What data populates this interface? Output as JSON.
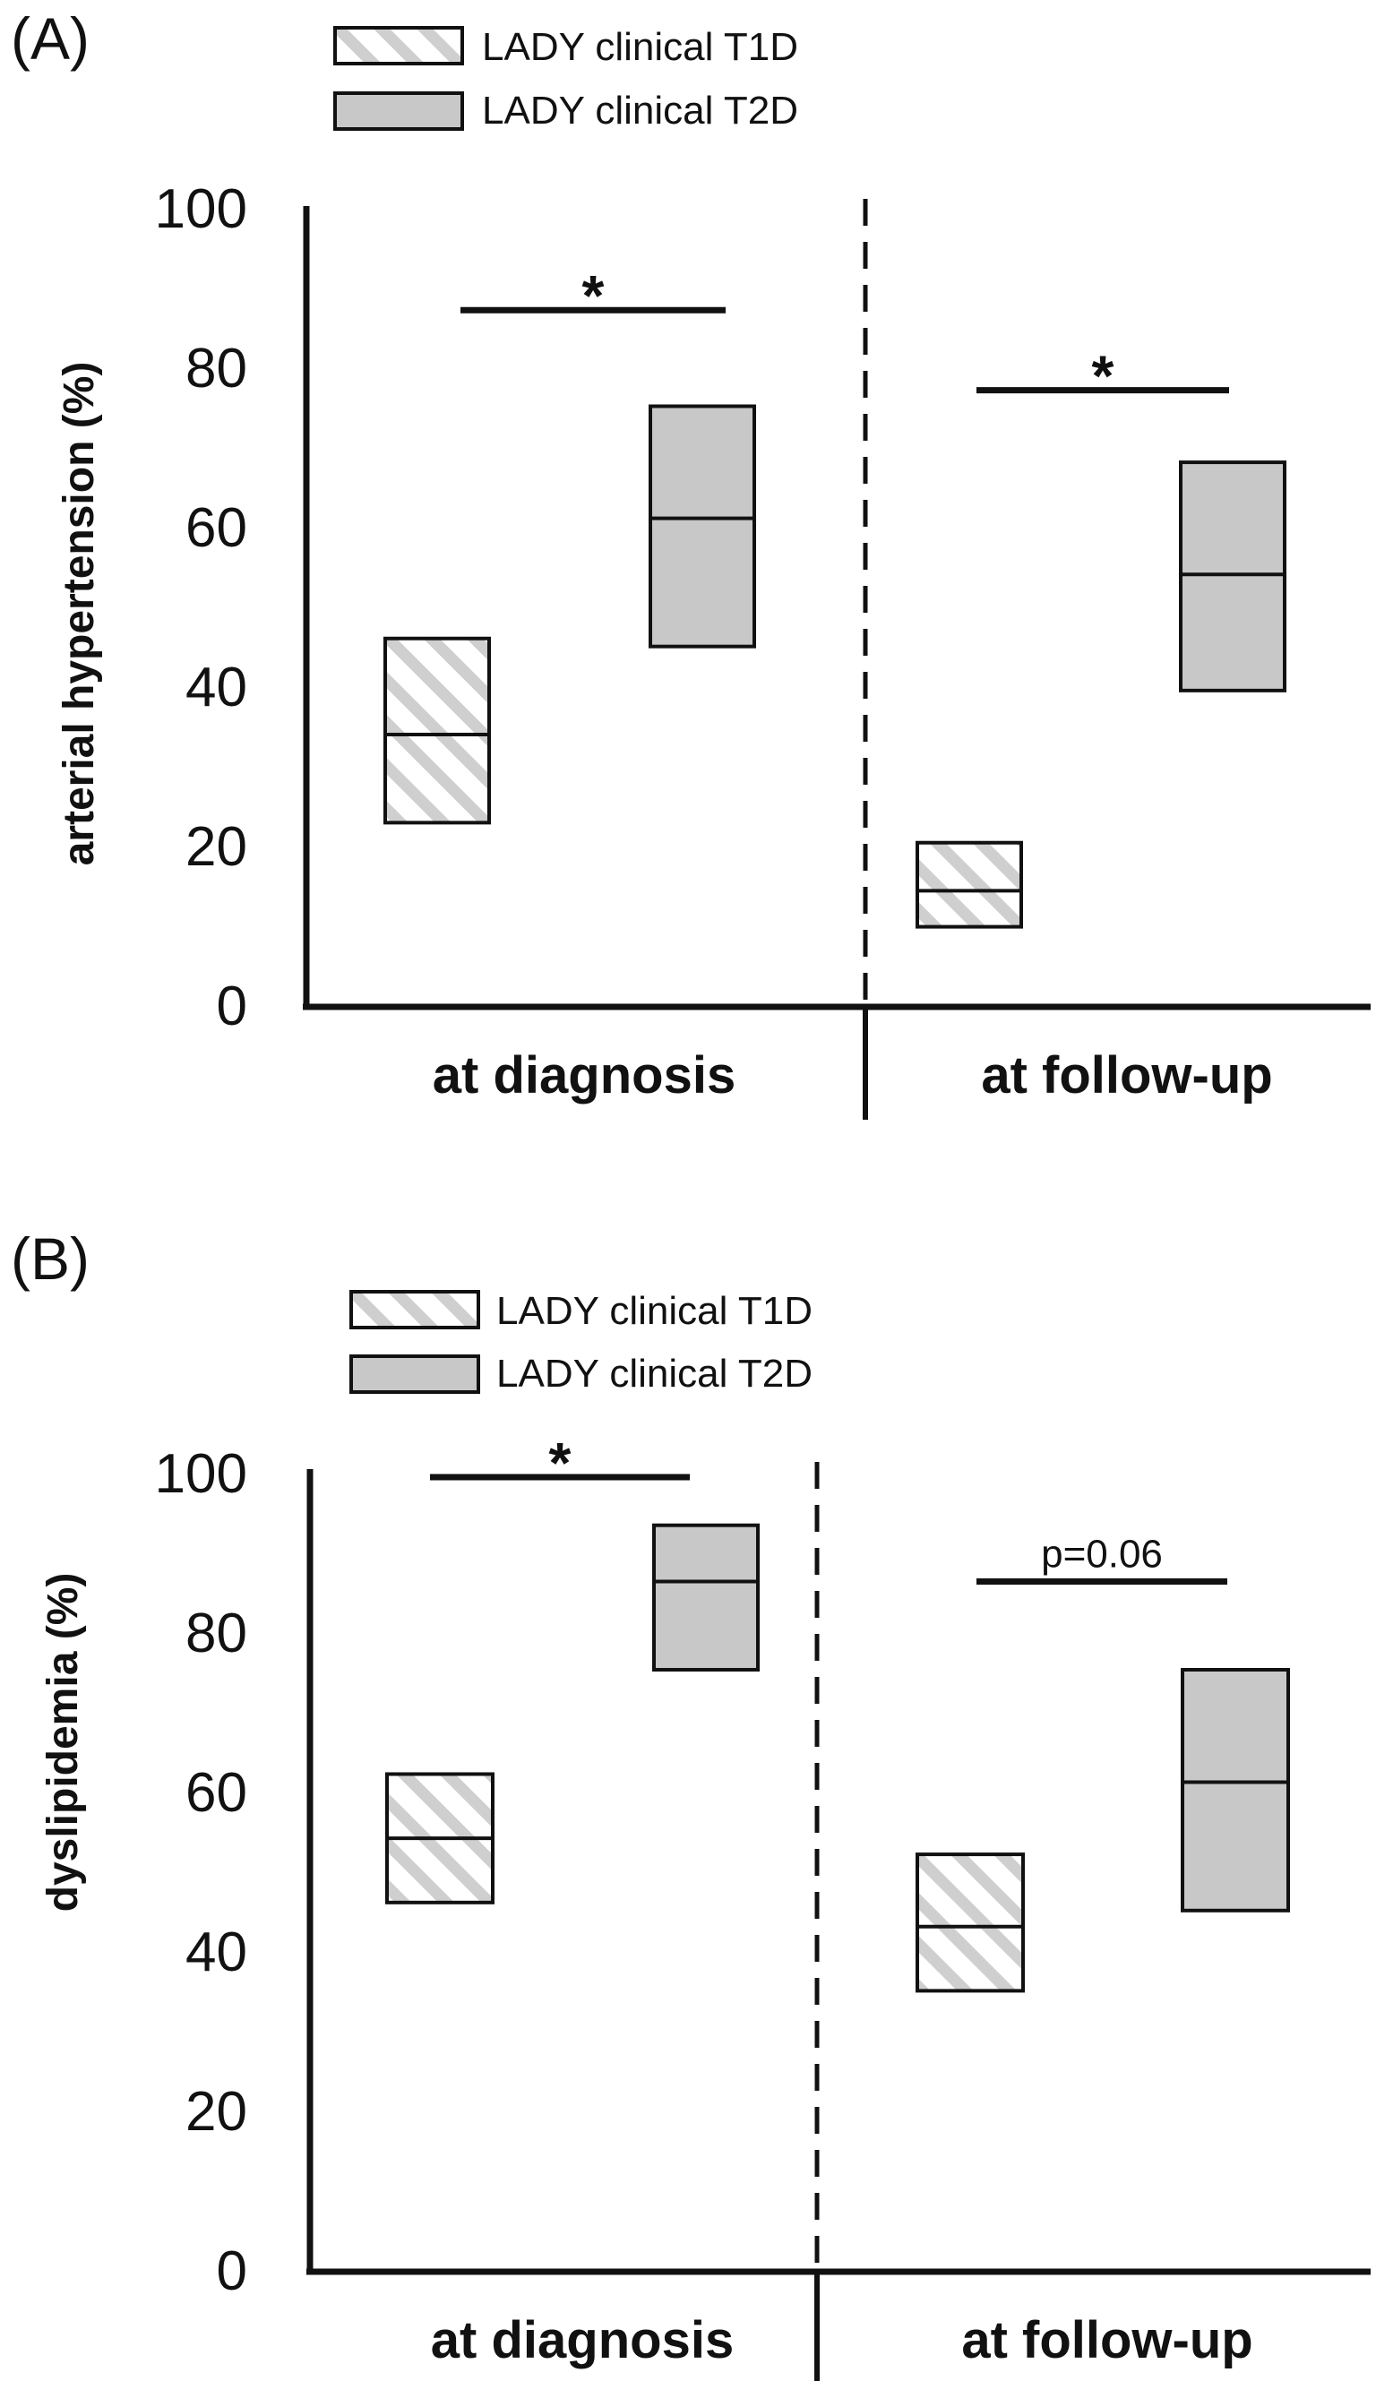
{
  "chart_data": [
    {
      "panel_label": "(A)",
      "type": "box",
      "ylabel": "arterial hypertension (%)",
      "ylim": [
        0,
        100
      ],
      "yticks": [
        "0",
        "20",
        "40",
        "60",
        "80",
        "100"
      ],
      "categories": [
        "at diagnosis",
        "at follow-up"
      ],
      "legend": [
        "LADY clinical T1D",
        "LADY clinical T2D"
      ],
      "series": [
        {
          "name": "LADY clinical T1D",
          "pattern": "hatched",
          "values": [
            {
              "low": 23,
              "mid": 34,
              "high": 46
            },
            {
              "low": 10,
              "mid": 14.5,
              "high": 20.5
            }
          ]
        },
        {
          "name": "LADY clinical T2D",
          "pattern": "solid",
          "color": "#c8c8c8",
          "values": [
            {
              "low": 45,
              "mid": 61,
              "high": 75
            },
            {
              "low": 39.5,
              "mid": 54,
              "high": 68
            }
          ]
        }
      ],
      "annotations": [
        {
          "category": 0,
          "label": "*",
          "y": 87
        },
        {
          "category": 1,
          "label": "*",
          "y": 77
        }
      ]
    },
    {
      "panel_label": "(B)",
      "type": "box",
      "ylabel": "dyslipidemia (%)",
      "ylim": [
        0,
        100
      ],
      "yticks": [
        "0",
        "20",
        "40",
        "60",
        "80",
        "100"
      ],
      "categories": [
        "at diagnosis",
        "at follow-up"
      ],
      "legend": [
        "LADY clinical T1D",
        "LADY clinical T2D"
      ],
      "series": [
        {
          "name": "LADY clinical T1D",
          "pattern": "hatched",
          "values": [
            {
              "low": 46,
              "mid": 54,
              "high": 62
            },
            {
              "low": 35,
              "mid": 43,
              "high": 52
            }
          ]
        },
        {
          "name": "LADY clinical T2D",
          "pattern": "solid",
          "color": "#c8c8c8",
          "values": [
            {
              "low": 75,
              "mid": 86,
              "high": 93
            },
            {
              "low": 45,
              "mid": 61,
              "high": 75
            }
          ]
        }
      ],
      "annotations": [
        {
          "category": 0,
          "label": "*",
          "y": 99
        },
        {
          "category": 1,
          "label": "p=0.06",
          "y": 86
        }
      ]
    }
  ]
}
